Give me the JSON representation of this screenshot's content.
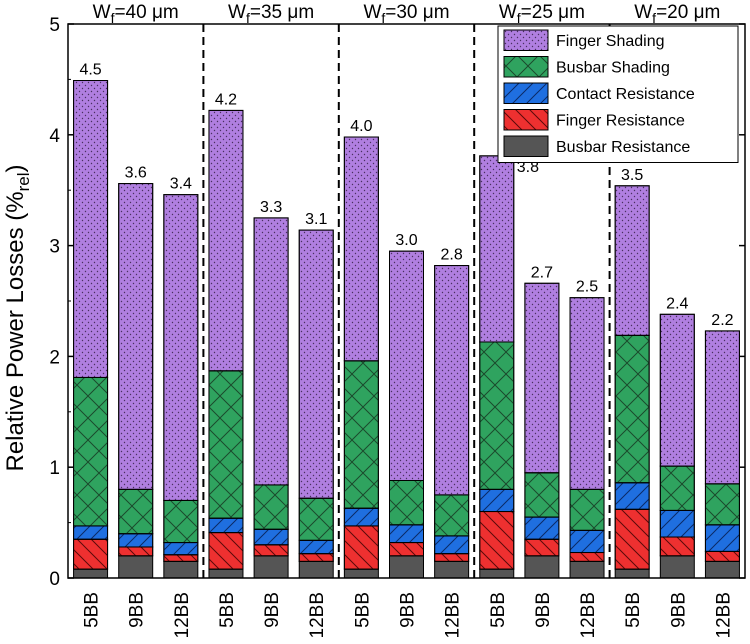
{
  "chart_data": {
    "type": "stacked-bar",
    "ylabel": "Relative Power Losses (%",
    "ylabel_subscript": "rel",
    "ylabel_close": ")",
    "ylim": [
      0,
      5
    ],
    "yticks": [
      "0",
      "1",
      "2",
      "3",
      "4",
      "5"
    ],
    "groups": [
      {
        "label": "W",
        "sub": "f",
        "rest": "=40 μm",
        "categories": [
          "5BB",
          "9BB",
          "12BB"
        ]
      },
      {
        "label": "W",
        "sub": "f",
        "rest": "=35 μm",
        "categories": [
          "5BB",
          "9BB",
          "12BB"
        ]
      },
      {
        "label": "W",
        "sub": "f",
        "rest": "=30 μm",
        "categories": [
          "5BB",
          "9BB",
          "12BB"
        ]
      },
      {
        "label": "W",
        "sub": "f",
        "rest": "=25 μm",
        "categories": [
          "5BB",
          "9BB",
          "12BB"
        ]
      },
      {
        "label": "W",
        "sub": "f",
        "rest": "=20 μm",
        "categories": [
          "5BB",
          "9BB",
          "12BB"
        ]
      }
    ],
    "series": [
      {
        "name": "Busbar Resistance",
        "color": "#555555",
        "pattern": "none",
        "values": [
          0.08,
          0.2,
          0.15,
          0.08,
          0.2,
          0.15,
          0.08,
          0.2,
          0.15,
          0.08,
          0.2,
          0.15,
          0.08,
          0.2,
          0.15
        ]
      },
      {
        "name": "Finger Resistance",
        "color": "#ee3030",
        "pattern": "diag-down",
        "values": [
          0.27,
          0.08,
          0.06,
          0.33,
          0.1,
          0.07,
          0.39,
          0.12,
          0.07,
          0.52,
          0.15,
          0.08,
          0.54,
          0.17,
          0.09
        ]
      },
      {
        "name": "Contact Resistance",
        "color": "#1f6fe0",
        "pattern": "diag-up",
        "values": [
          0.12,
          0.12,
          0.11,
          0.13,
          0.14,
          0.12,
          0.16,
          0.16,
          0.16,
          0.2,
          0.2,
          0.2,
          0.24,
          0.24,
          0.24
        ]
      },
      {
        "name": "Busbar Shading",
        "color": "#2fa35f",
        "pattern": "cross",
        "values": [
          1.34,
          0.4,
          0.38,
          1.33,
          0.4,
          0.38,
          1.33,
          0.4,
          0.37,
          1.33,
          0.4,
          0.37,
          1.33,
          0.4,
          0.37
        ]
      },
      {
        "name": "Finger Shading",
        "color": "#b07fe0",
        "pattern": "dots",
        "values": [
          2.68,
          2.76,
          2.76,
          2.35,
          2.41,
          2.42,
          2.02,
          2.07,
          2.07,
          1.68,
          1.71,
          1.73,
          1.35,
          1.37,
          1.38
        ]
      }
    ],
    "totals": [
      "4.5",
      "3.6",
      "3.4",
      "4.2",
      "3.3",
      "3.1",
      "4.0",
      "3.0",
      "2.8",
      "3.8",
      "2.7",
      "2.5",
      "3.5",
      "2.4",
      "2.2"
    ],
    "legend": {
      "placement": "top-right",
      "order": [
        "Finger Shading",
        "Busbar Shading",
        "Contact Resistance",
        "Finger Resistance",
        "Busbar Resistance"
      ]
    }
  }
}
